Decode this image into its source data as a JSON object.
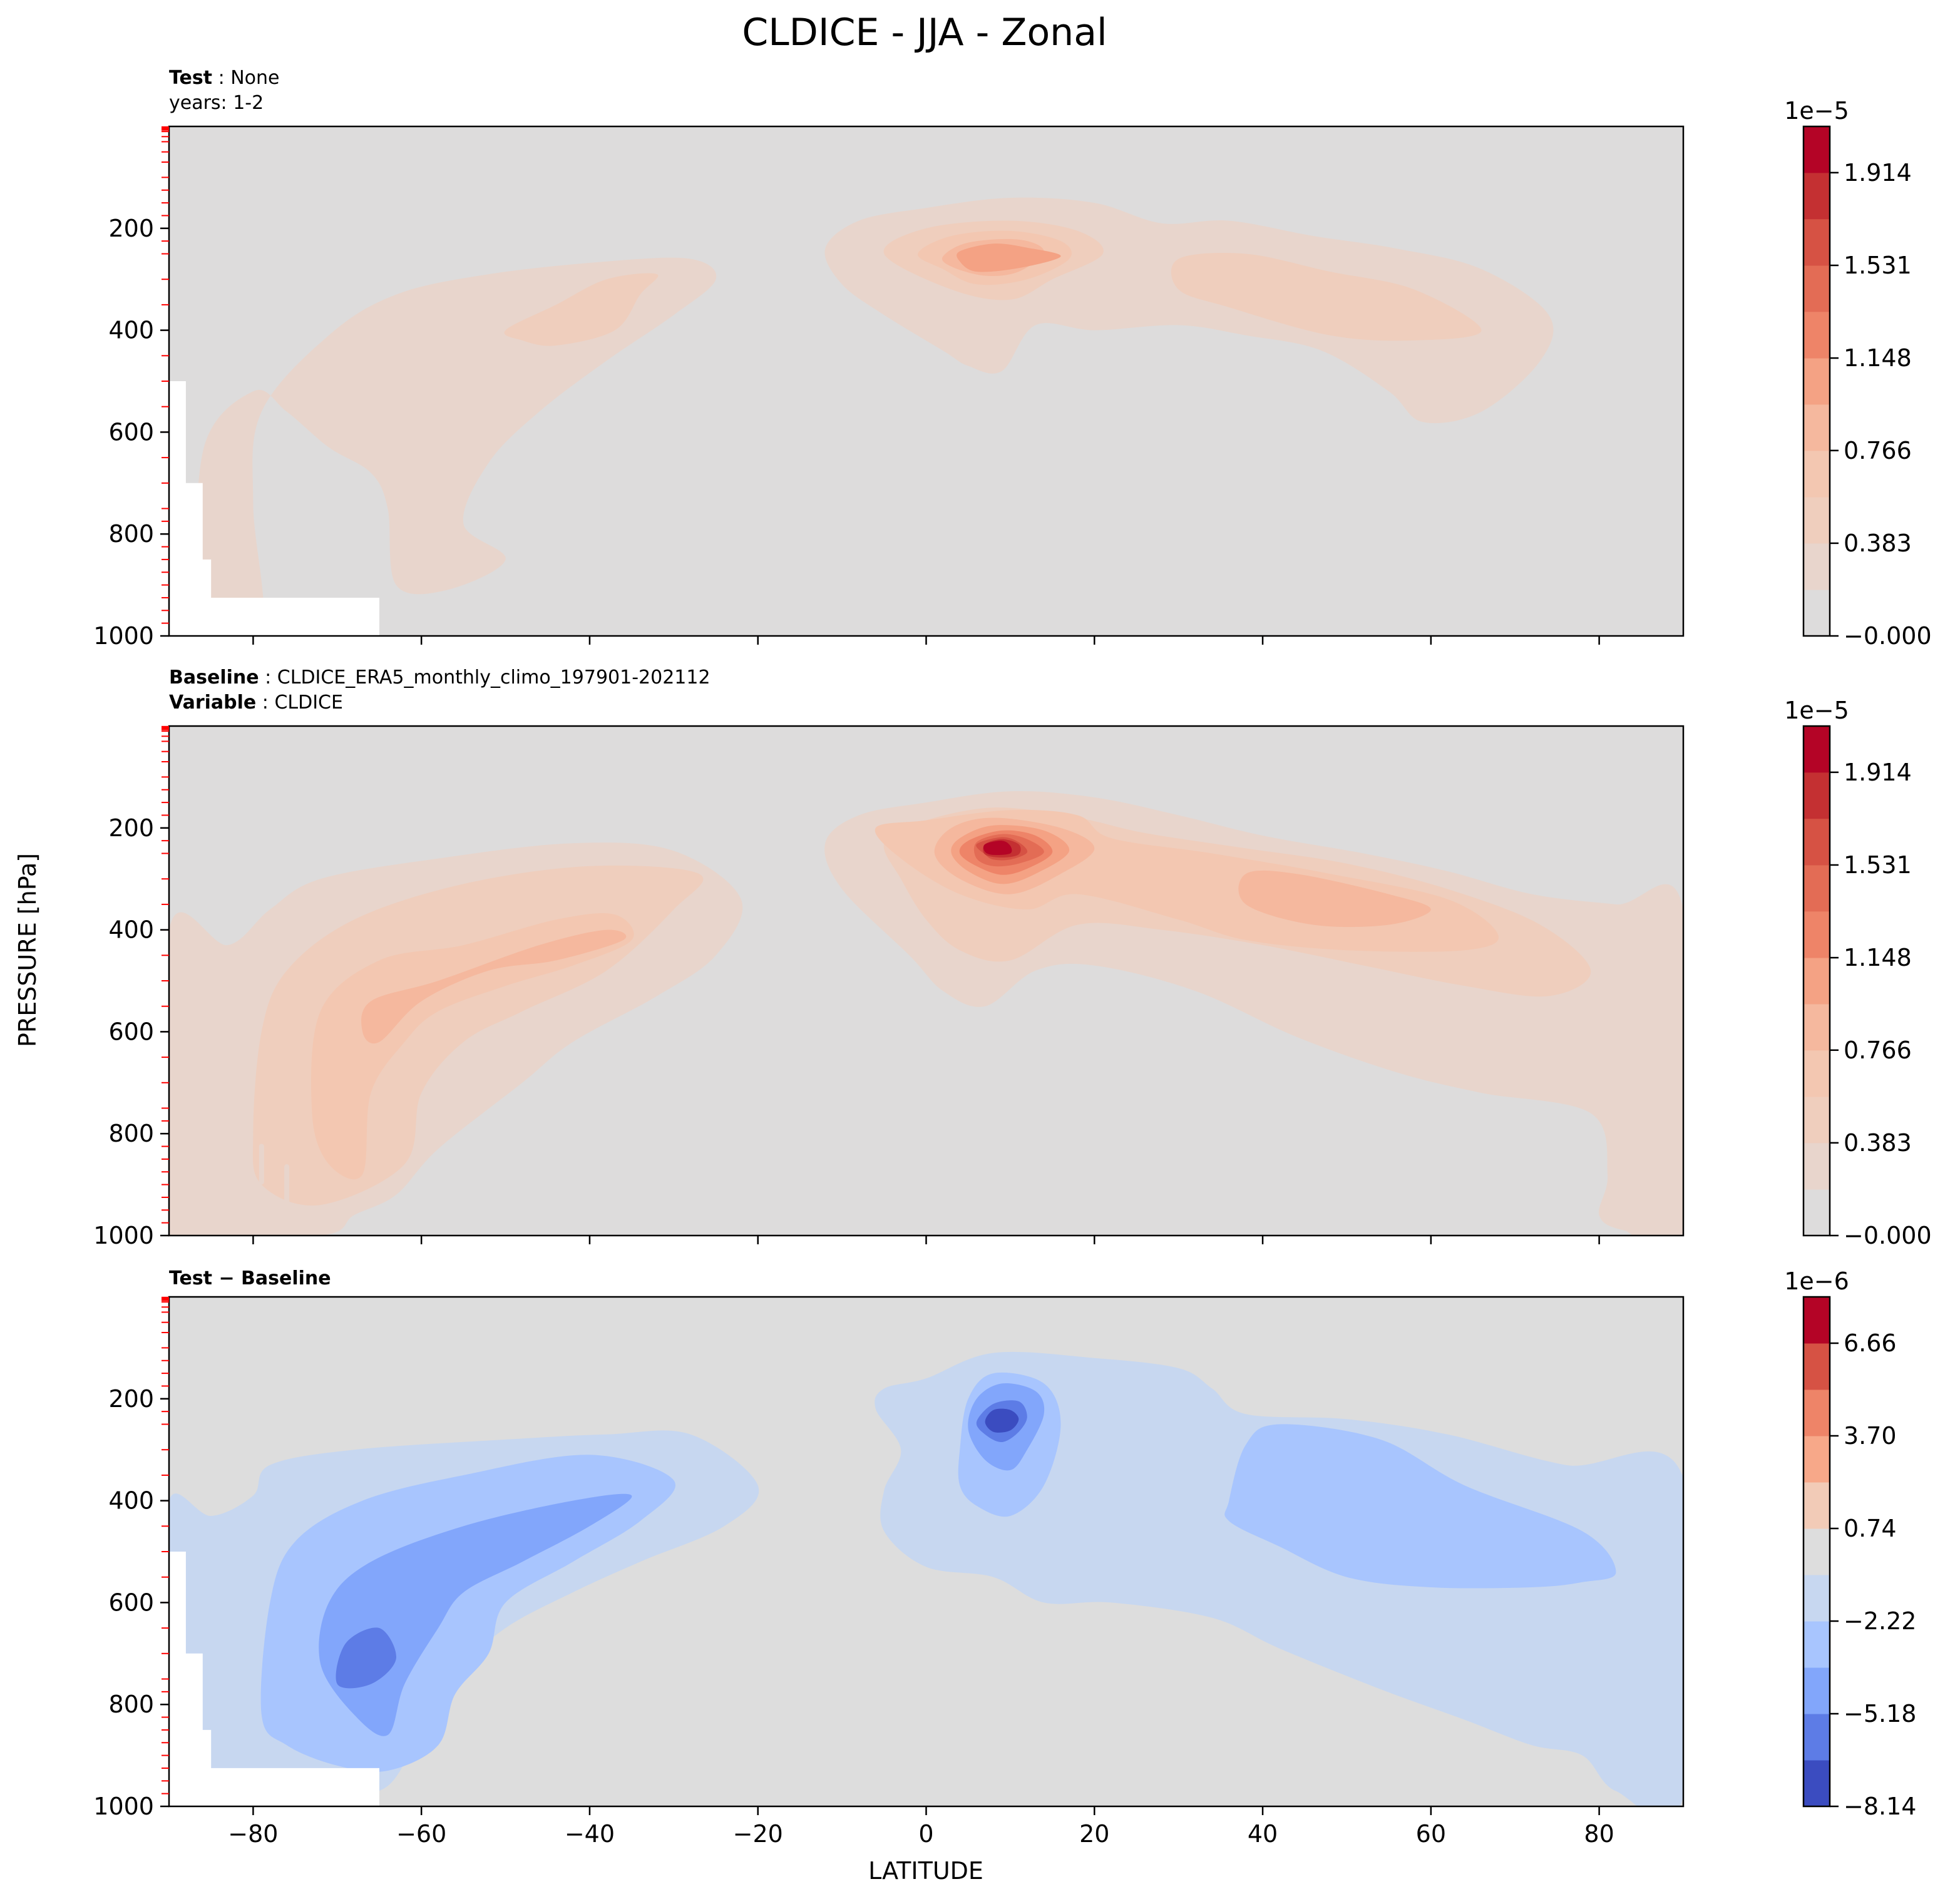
{
  "figure": {
    "title": "CLDICE - JJA - Zonal"
  },
  "chart_data": [
    {
      "type": "heatmap",
      "subtype": "filled-contour",
      "panel": "test",
      "subtitle_lines": [
        {
          "bold": "Test",
          "sep": " : ",
          "text": "None"
        },
        {
          "bold": "",
          "sep": "",
          "text": "years: 1-2"
        }
      ],
      "xlim": [
        -90,
        90
      ],
      "ylim": [
        1000,
        0
      ],
      "yticks": [
        200,
        400,
        600,
        800,
        1000
      ],
      "colormap": "coolwarm (upper half)",
      "colorbar": {
        "exponent": "1e−5",
        "tick_values": [
          0.0,
          0.383,
          0.766,
          1.148,
          1.531,
          1.914
        ],
        "tick_labels": [
          "−0.000",
          "0.383",
          "0.766",
          "1.148",
          "1.531",
          "1.914"
        ],
        "levels": [
          0.0,
          0.191,
          0.383,
          0.574,
          0.766,
          0.957,
          1.148,
          1.34,
          1.531,
          1.723,
          1.914,
          2.105
        ],
        "colors": [
          "#dddcdc",
          "#e8d5cc",
          "#efcebd",
          "#f3c7b1",
          "#f5b89e",
          "#f4a284",
          "#ee8468",
          "#e36c55",
          "#d65244",
          "#c43032",
          "#b40426"
        ]
      },
      "features": [
        {
          "name": "southern-hemisphere band",
          "lat": [
            -75,
            -25
          ],
          "pressure_hPa": [
            270,
            900
          ],
          "max_value": 0.5
        },
        {
          "name": "tropical upper-level maximum",
          "lat": [
            -12,
            30
          ],
          "pressure_hPa": [
            150,
            480
          ],
          "center_lat": 8,
          "center_pressure_hPa": 250,
          "max_value": 1.2
        },
        {
          "name": "northern-hemisphere band",
          "lat": [
            30,
            75
          ],
          "pressure_hPa": [
            190,
            580
          ],
          "max_value": 0.5
        }
      ],
      "missing_region": "lat -90 to -65, pressure 500 to 1000 hPa (below topography)"
    },
    {
      "type": "heatmap",
      "subtype": "filled-contour",
      "panel": "baseline",
      "subtitle_lines": [
        {
          "bold": "Baseline",
          "sep": " : ",
          "text": "CLDICE_ERA5_monthly_climo_197901-202112"
        },
        {
          "bold": "Variable",
          "sep": " : ",
          "text": "CLDICE"
        }
      ],
      "xlim": [
        -90,
        90
      ],
      "ylim": [
        1000,
        0
      ],
      "yticks": [
        200,
        400,
        600,
        800,
        1000
      ],
      "colormap": "coolwarm (upper half)",
      "colorbar": {
        "exponent": "1e−5",
        "tick_values": [
          0.0,
          0.383,
          0.766,
          1.148,
          1.531,
          1.914
        ],
        "tick_labels": [
          "−0.000",
          "0.383",
          "0.766",
          "1.148",
          "1.531",
          "1.914"
        ],
        "levels": [
          0.0,
          0.191,
          0.383,
          0.574,
          0.766,
          0.957,
          1.148,
          1.34,
          1.531,
          1.723,
          1.914,
          2.105
        ],
        "colors": [
          "#dddcdc",
          "#e8d5cc",
          "#efcebd",
          "#f3c7b1",
          "#f5b89e",
          "#f4a284",
          "#ee8468",
          "#e36c55",
          "#d65244",
          "#c43032",
          "#b40426"
        ]
      },
      "features": [
        {
          "name": "southern-hemisphere band",
          "lat": [
            -88,
            -22
          ],
          "pressure_hPa": [
            230,
            1000
          ],
          "max_value": 0.9
        },
        {
          "name": "tropical upper-level maximum",
          "lat": [
            -12,
            32
          ],
          "pressure_hPa": [
            130,
            540
          ],
          "center_lat": 8,
          "center_pressure_hPa": 240,
          "max_value": 2.0
        },
        {
          "name": "northern-hemisphere band",
          "lat": [
            30,
            90
          ],
          "pressure_hPa": [
            200,
            1000
          ],
          "max_value": 0.9
        }
      ]
    },
    {
      "type": "heatmap",
      "subtype": "filled-contour",
      "panel": "difference",
      "subtitle_lines": [
        {
          "bold": "Test − Baseline",
          "sep": "",
          "text": ""
        }
      ],
      "xlim": [
        -90,
        90
      ],
      "ylim": [
        1000,
        0
      ],
      "yticks": [
        200,
        400,
        600,
        800,
        1000
      ],
      "colormap": "coolwarm",
      "colorbar": {
        "exponent": "1e−6",
        "tick_values": [
          -8.14,
          -5.18,
          -2.22,
          0.74,
          3.7,
          6.66
        ],
        "tick_labels": [
          "−8.14",
          "−5.18",
          "−2.22",
          "0.74",
          "3.70",
          "6.66"
        ],
        "levels": [
          -8.14,
          -6.66,
          -5.18,
          -3.7,
          -2.22,
          -0.74,
          0.74,
          2.22,
          3.7,
          5.18,
          6.66,
          8.14
        ],
        "colors": [
          "#3b4cc0",
          "#5d7ce6",
          "#82a6fb",
          "#a8c5fe",
          "#c7d7f0",
          "#dddddd",
          "#f2cbb7",
          "#f7a889",
          "#ee8468",
          "#d65244",
          "#b40426"
        ]
      },
      "features": [
        {
          "name": "southern-hemisphere negative band",
          "lat": [
            -88,
            -20
          ],
          "pressure_hPa": [
            290,
            960
          ],
          "min_value": -6.5
        },
        {
          "name": "tropical upper-level negative core",
          "lat": [
            -5,
            23
          ],
          "pressure_hPa": [
            120,
            600
          ],
          "center_lat": 8,
          "center_pressure_hPa": 230,
          "min_value": -8.0
        },
        {
          "name": "northern-hemisphere negative band",
          "lat": [
            28,
            90
          ],
          "pressure_hPa": [
            230,
            980
          ],
          "min_value": -4.0
        }
      ],
      "missing_region": "lat -90 to -65, pressure 500 to 1000 hPa (below topography)"
    }
  ],
  "axes": {
    "ylabel": "PRESSURE [hPa]",
    "xlabel": "LATITUDE",
    "xticks": [
      -80,
      -60,
      -40,
      -20,
      0,
      20,
      40,
      60,
      80
    ],
    "xtick_labels": [
      "−80",
      "−60",
      "−40",
      "−20",
      "0",
      "20",
      "40",
      "60",
      "80"
    ],
    "ytick_labels": [
      "200",
      "400",
      "600",
      "800",
      "1000"
    ],
    "minor_pressure_ticks_color": "#ff0000",
    "minor_pressure_levels": [
      1,
      2,
      3,
      5,
      7,
      10,
      20,
      30,
      50,
      70,
      100,
      125,
      150,
      175,
      200,
      225,
      250,
      300,
      350,
      400,
      450,
      500,
      550,
      600,
      650,
      700,
      750,
      775,
      800,
      825,
      850,
      875,
      900,
      925,
      950,
      975,
      1000
    ]
  }
}
